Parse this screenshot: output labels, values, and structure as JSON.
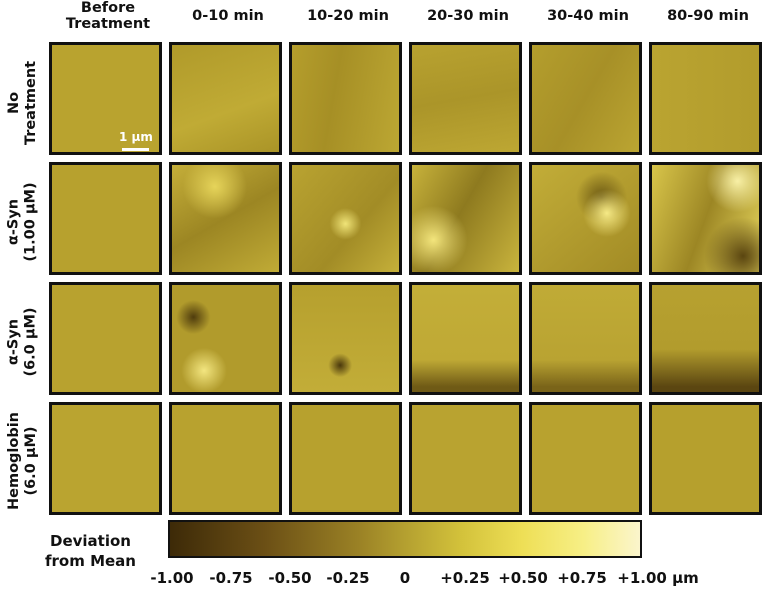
{
  "columns": [
    "Before\nTreatment",
    "0-10 min",
    "10-20 min",
    "20-30 min",
    "30-40 min",
    "80-90 min"
  ],
  "rows": [
    "No\nTreatment",
    "α-Syn\n(1.00 μM)",
    "α-Syn\n(6.0 μM)",
    "Hemoglobin\n(6.0 μM)"
  ],
  "scale_bar_label": "1 μm",
  "colorbar": {
    "title": "Deviation\nfrom Mean",
    "ticks": [
      "-1.00",
      "-0.75",
      "-0.50",
      "-0.25",
      "0",
      "+0.25",
      "+0.50",
      "+0.75",
      "+1.00 μm"
    ],
    "colors": [
      "#3d2a08",
      "#b4a030",
      "#fbf5cc"
    ]
  },
  "tile_base_color": "#b8a12e"
}
